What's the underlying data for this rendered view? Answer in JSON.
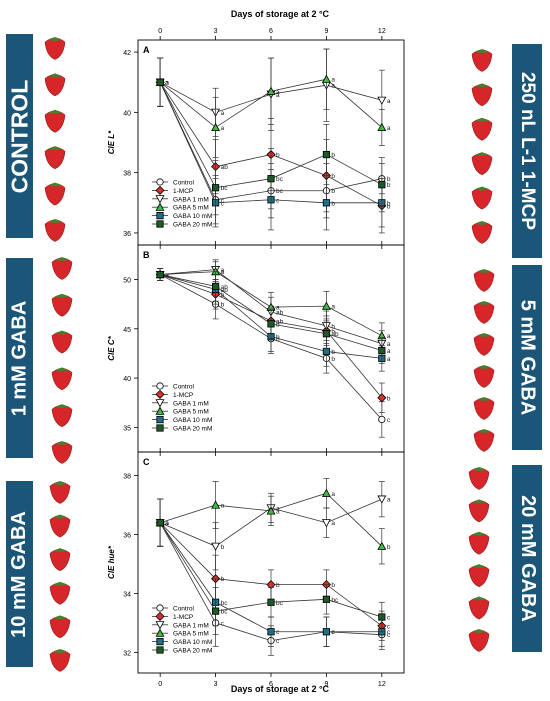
{
  "labels": {
    "control": "CONTROL",
    "gaba1": "1 mM GABA",
    "gaba10": "10 mM GABA",
    "mcp": "250 nL L-1 1-MCP",
    "gaba5": "5 mM GABA",
    "gaba20": "20 mM GABA"
  },
  "colors": {
    "label_bg": "#1b5679",
    "strawberry": "#d7262a",
    "Control": "#ffffff",
    "1-MCP": "#d9302a",
    "GABA 1 mM": "#ffffff",
    "GABA 5 mM": "#3dbd3d",
    "GABA 10 mM": "#1f6f86",
    "GABA 20 mM": "#1e5a28"
  },
  "axis_title": "Days of storage at 2 °C",
  "chart_data": [
    {
      "type": "line",
      "panel": "A",
      "ylabel": "CIE L*",
      "x": [
        0,
        3,
        6,
        9,
        12
      ],
      "xlim": [
        -1.2,
        13.2
      ],
      "ylim": [
        35.6,
        42.4
      ],
      "yticks": [
        36,
        38,
        40,
        42
      ],
      "series": [
        {
          "name": "Control",
          "values": [
            41.0,
            37.1,
            37.4,
            37.4,
            37.8
          ],
          "errors": [
            0.8,
            0.8,
            0.9,
            0.9,
            0.5
          ],
          "letters": [
            "a",
            "c",
            "bc",
            "b",
            "b"
          ]
        },
        {
          "name": "1-MCP",
          "values": [
            41.0,
            38.2,
            38.6,
            37.9,
            36.9
          ],
          "errors": [
            0.8,
            0.9,
            1.2,
            1.2,
            0.9
          ],
          "letters": [
            "a",
            "ab",
            "b",
            "b",
            "b"
          ]
        },
        {
          "name": "GABA 1 mM",
          "values": [
            41.0,
            40.0,
            40.6,
            40.9,
            40.4
          ],
          "errors": [
            0.8,
            0.8,
            1.2,
            1.2,
            1.0
          ],
          "letters": [
            "a",
            "a",
            "a",
            "a",
            "a"
          ]
        },
        {
          "name": "GABA 5 mM",
          "values": [
            41.0,
            39.5,
            40.7,
            41.1,
            39.5
          ],
          "errors": [
            0.8,
            1.0,
            1.1,
            1.0,
            0.6
          ],
          "letters": [
            "a",
            "a",
            "a",
            "a",
            "a"
          ]
        },
        {
          "name": "GABA 10 mM",
          "values": [
            41.0,
            37.0,
            37.1,
            37.0,
            37.0
          ],
          "errors": [
            0.8,
            0.8,
            1.0,
            0.9,
            0.8
          ],
          "letters": [
            "a",
            "c",
            "c",
            "b",
            "b"
          ]
        },
        {
          "name": "GABA 20 mM",
          "values": [
            41.0,
            37.5,
            37.8,
            38.6,
            37.6
          ],
          "errors": [
            0.8,
            0.9,
            1.0,
            1.0,
            0.9
          ],
          "letters": [
            "a",
            "bc",
            "bc",
            "b",
            "b"
          ]
        }
      ]
    },
    {
      "type": "line",
      "panel": "B",
      "ylabel": "CIE C*",
      "x": [
        0,
        3,
        6,
        9,
        12
      ],
      "xlim": [
        -1.2,
        13.2
      ],
      "ylim": [
        32.5,
        53.5
      ],
      "yticks": [
        35,
        40,
        45,
        50
      ],
      "series": [
        {
          "name": "Control",
          "values": [
            50.5,
            47.5,
            44.0,
            42.0,
            35.8
          ],
          "errors": [
            0.6,
            1.5,
            1.5,
            1.5,
            1.8
          ],
          "letters": [
            "a",
            "b",
            "b",
            "b",
            "c"
          ]
        },
        {
          "name": "1-MCP",
          "values": [
            50.5,
            48.5,
            45.8,
            44.8,
            38.0
          ],
          "errors": [
            0.6,
            1.5,
            1.5,
            1.5,
            1.5
          ],
          "letters": [
            "a",
            "b",
            "ab",
            "b",
            "b"
          ]
        },
        {
          "name": "GABA 1 mM",
          "values": [
            50.5,
            51.0,
            46.7,
            45.3,
            43.5
          ],
          "errors": [
            0.6,
            1.0,
            1.5,
            1.5,
            1.3
          ],
          "letters": [
            "a",
            "a",
            "ab",
            "b",
            "a"
          ]
        },
        {
          "name": "GABA 5 mM",
          "values": [
            50.5,
            50.8,
            47.2,
            47.3,
            44.3
          ],
          "errors": [
            0.6,
            1.0,
            1.5,
            1.5,
            1.3
          ],
          "letters": [
            "a",
            "a",
            "a",
            "a",
            "a"
          ]
        },
        {
          "name": "GABA 10 mM",
          "values": [
            50.5,
            49.0,
            44.2,
            42.7,
            42.0
          ],
          "errors": [
            0.6,
            1.5,
            1.5,
            1.5,
            1.3
          ],
          "letters": [
            "a",
            "ab",
            "b",
            "b",
            "a"
          ]
        },
        {
          "name": "GABA 20 mM",
          "values": [
            50.5,
            49.3,
            45.5,
            44.5,
            42.8
          ],
          "errors": [
            0.6,
            1.5,
            1.5,
            1.5,
            1.3
          ],
          "letters": [
            "a",
            "ab",
            "b",
            "ab",
            "a"
          ]
        }
      ]
    },
    {
      "type": "line",
      "panel": "C",
      "ylabel": "CIE hue*",
      "x": [
        0,
        3,
        6,
        9,
        12
      ],
      "xlim": [
        -1.2,
        13.2
      ],
      "ylim": [
        31.3,
        38.8
      ],
      "yticks": [
        32,
        34,
        36,
        38
      ],
      "series": [
        {
          "name": "Control",
          "values": [
            36.4,
            33.0,
            32.4,
            32.7,
            32.6
          ],
          "errors": [
            0.8,
            0.8,
            0.5,
            0.5,
            0.5
          ],
          "letters": [
            "a",
            "c",
            "c",
            "c",
            "c"
          ]
        },
        {
          "name": "1-MCP",
          "values": [
            36.4,
            34.5,
            34.3,
            34.3,
            32.9
          ],
          "errors": [
            0.8,
            0.8,
            0.5,
            0.5,
            0.5
          ],
          "letters": [
            "a",
            "b",
            "b",
            "b",
            "c"
          ]
        },
        {
          "name": "GABA 1 mM",
          "values": [
            36.4,
            35.6,
            36.9,
            36.4,
            37.2
          ],
          "errors": [
            0.8,
            0.8,
            0.5,
            0.5,
            0.6
          ],
          "letters": [
            "a",
            "b",
            "a",
            "a",
            "a"
          ]
        },
        {
          "name": "GABA 5 mM",
          "values": [
            36.4,
            37.0,
            36.8,
            37.4,
            35.6
          ],
          "errors": [
            0.8,
            0.8,
            0.5,
            0.5,
            0.6
          ],
          "letters": [
            "a",
            "a",
            "a",
            "a",
            "b"
          ]
        },
        {
          "name": "GABA 10 mM",
          "values": [
            36.4,
            33.7,
            32.7,
            32.7,
            32.7
          ],
          "errors": [
            0.8,
            0.8,
            0.5,
            0.5,
            0.5
          ],
          "letters": [
            "a",
            "bc",
            "c",
            "c",
            "c"
          ]
        },
        {
          "name": "GABA 20 mM",
          "values": [
            36.4,
            33.4,
            33.7,
            33.8,
            33.2
          ],
          "errors": [
            0.8,
            0.8,
            0.5,
            0.5,
            0.5
          ],
          "letters": [
            "a",
            "bc",
            "bc",
            "bc",
            "c"
          ]
        }
      ]
    }
  ]
}
